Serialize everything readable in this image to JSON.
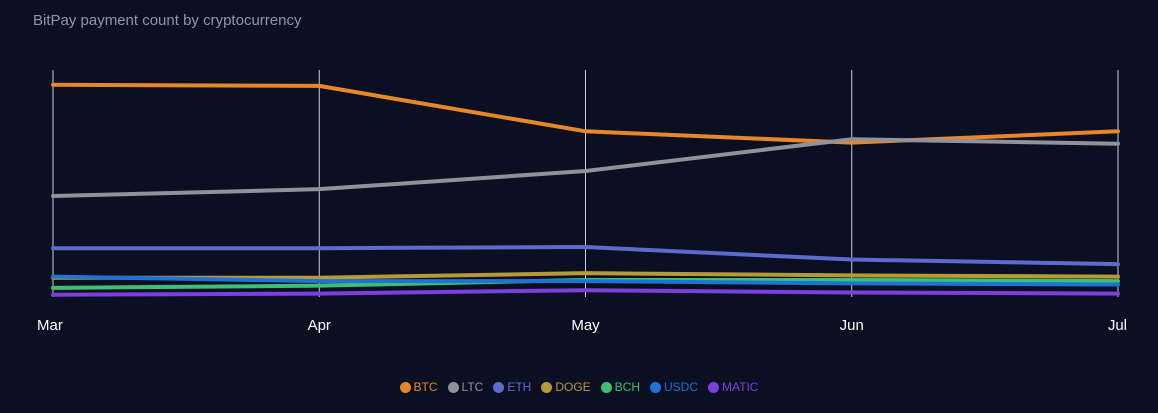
{
  "subtitle": "BitPay payment count by cryptocurrency",
  "chart_data": {
    "type": "line",
    "title": "",
    "subtitle": "BitPay payment count by cryptocurrency",
    "xlabel": "",
    "ylabel": "",
    "categories": [
      "Mar",
      "Apr",
      "May",
      "Jun",
      "Jul"
    ],
    "ylim": [
      0,
      100
    ],
    "grid": "vertical",
    "legend": "bottom-center",
    "series": [
      {
        "name": "BTC",
        "color": "#e8872a",
        "values": [
          93.5,
          93.0,
          73.0,
          68.0,
          73.0
        ]
      },
      {
        "name": "LTC",
        "color": "#8e939b",
        "values": [
          44.5,
          47.5,
          55.5,
          69.5,
          67.5
        ]
      },
      {
        "name": "ETH",
        "color": "#5f6acf",
        "values": [
          21.5,
          21.5,
          22.0,
          16.5,
          14.5
        ]
      },
      {
        "name": "DOGE",
        "color": "#b69a3a",
        "values": [
          8.5,
          8.5,
          10.5,
          9.5,
          9.0
        ]
      },
      {
        "name": "BCH",
        "color": "#3fbf74",
        "values": [
          4.0,
          5.0,
          7.5,
          7.5,
          7.0
        ]
      },
      {
        "name": "USDC",
        "color": "#1e73d8",
        "values": [
          9.0,
          7.0,
          7.0,
          6.0,
          5.5
        ]
      },
      {
        "name": "MATIC",
        "color": "#7a3fdc",
        "values": [
          1.0,
          1.5,
          3.0,
          2.0,
          1.5
        ]
      }
    ]
  }
}
